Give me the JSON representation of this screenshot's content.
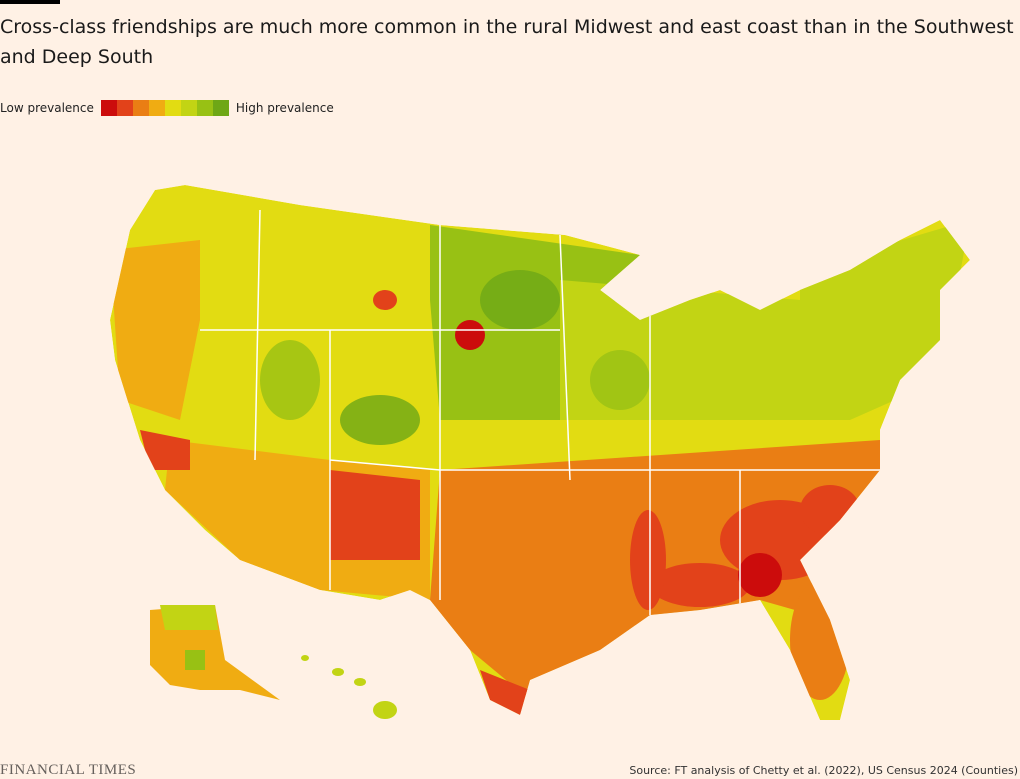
{
  "header": {
    "title": "Cross-class friendships are much more common in the rural Midwest and east coast than in the Southwest and Deep South"
  },
  "legend": {
    "low_label": "Low prevalence",
    "high_label": "High prevalence",
    "colors": [
      "#cc0c0c",
      "#e2421a",
      "#ea7e14",
      "#f0ac12",
      "#e2dc12",
      "#c2d414",
      "#98c114",
      "#6ea716"
    ]
  },
  "footer": {
    "brand": "FINANCIAL TIMES",
    "source": "Source: FT analysis of Chetty et al. (2022), US Census 2024 (Counties)"
  }
}
